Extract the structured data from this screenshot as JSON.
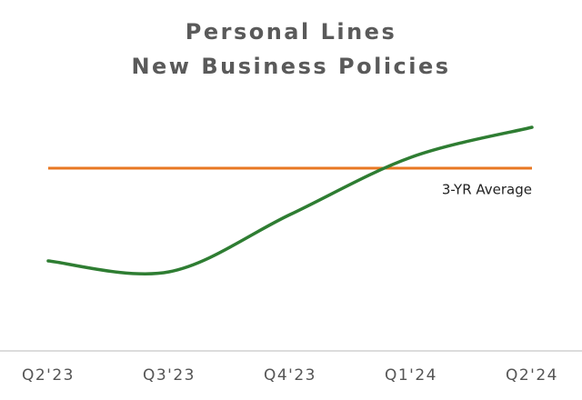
{
  "chart_data": {
    "type": "line",
    "title": [
      "Personal Lines",
      "New Business Policies"
    ],
    "categories": [
      "Q2'23",
      "Q3'23",
      "Q4'23",
      "Q1'24",
      "Q2'24"
    ],
    "series": [
      {
        "name": "New Business Policies",
        "color": "#2e7d32",
        "values": [
          33,
          29,
          50,
          71,
          82
        ]
      }
    ],
    "reference_line": {
      "label": "3-YR Average",
      "value": 67,
      "color": "#e87722"
    },
    "ylim": [
      0,
      100
    ]
  }
}
